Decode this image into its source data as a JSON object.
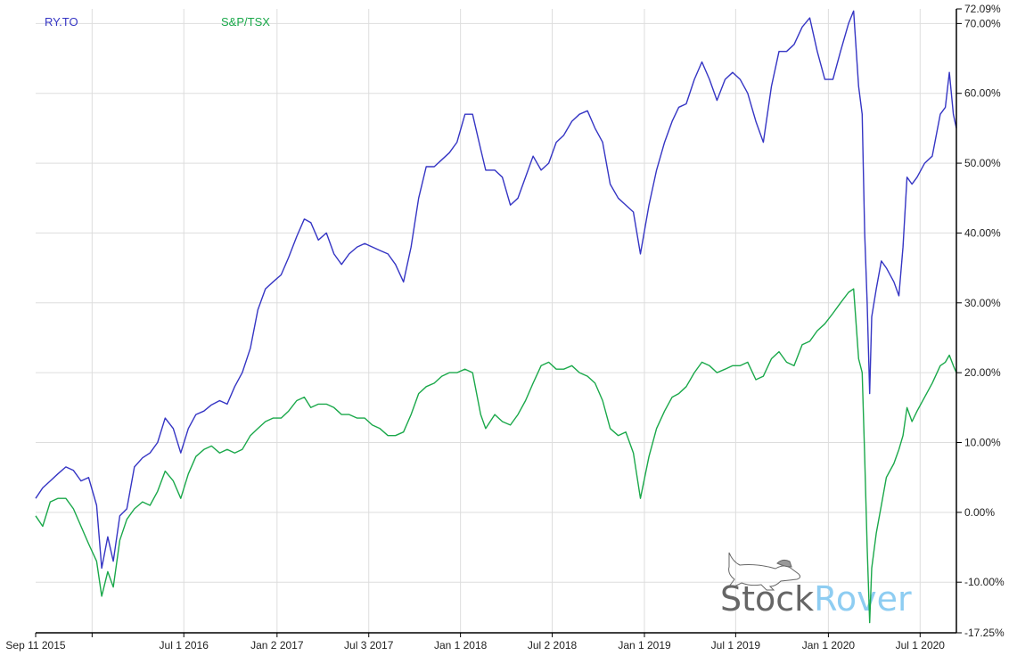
{
  "chart_data": {
    "type": "line",
    "title": "",
    "xlabel": "",
    "ylabel": "",
    "x_range": [
      "2015-09-11",
      "2020-09-11"
    ],
    "ylim": [
      -17.25,
      72.09
    ],
    "y_unit": "%",
    "grid": true,
    "legend_placement": "top-left",
    "x_ticks": [
      {
        "date": "2015-09-11",
        "label": "Sep 11 2015"
      },
      {
        "date": "2016-01-01",
        "label": ""
      },
      {
        "date": "2016-07-01",
        "label": "Jul 1 2016"
      },
      {
        "date": "2017-01-02",
        "label": "Jan 2 2017"
      },
      {
        "date": "2017-07-03",
        "label": "Jul 3 2017"
      },
      {
        "date": "2018-01-01",
        "label": "Jan 1 2018"
      },
      {
        "date": "2018-07-02",
        "label": "Jul 2 2018"
      },
      {
        "date": "2019-01-01",
        "label": "Jan 1 2019"
      },
      {
        "date": "2019-07-01",
        "label": "Jul 1 2019"
      },
      {
        "date": "2020-01-01",
        "label": "Jan 1 2020"
      },
      {
        "date": "2020-07-01",
        "label": "Jul 1 2020"
      }
    ],
    "y_ticks": [
      {
        "value": 72.09,
        "label": "72.09%"
      },
      {
        "value": 70,
        "label": "70.00%"
      },
      {
        "value": 60,
        "label": "60.00%"
      },
      {
        "value": 50,
        "label": "50.00%"
      },
      {
        "value": 40,
        "label": "40.00%"
      },
      {
        "value": 30,
        "label": "30.00%"
      },
      {
        "value": 20,
        "label": "20.00%"
      },
      {
        "value": 10,
        "label": "10.00%"
      },
      {
        "value": 0,
        "label": "0.00%"
      },
      {
        "value": -10,
        "label": "-10.00%"
      },
      {
        "value": -17.25,
        "label": "-17.25%"
      }
    ],
    "x": [
      "2015-09-11",
      "2015-09-25",
      "2015-10-10",
      "2015-10-25",
      "2015-11-10",
      "2015-11-25",
      "2015-12-10",
      "2015-12-25",
      "2016-01-10",
      "2016-01-20",
      "2016-02-01",
      "2016-02-12",
      "2016-02-25",
      "2016-03-10",
      "2016-03-25",
      "2016-04-10",
      "2016-04-25",
      "2016-05-10",
      "2016-05-25",
      "2016-06-10",
      "2016-06-25",
      "2016-07-10",
      "2016-07-25",
      "2016-08-10",
      "2016-08-25",
      "2016-09-10",
      "2016-09-25",
      "2016-10-10",
      "2016-10-25",
      "2016-11-10",
      "2016-11-25",
      "2016-12-10",
      "2016-12-25",
      "2017-01-10",
      "2017-01-25",
      "2017-02-10",
      "2017-02-25",
      "2017-03-10",
      "2017-03-25",
      "2017-04-10",
      "2017-04-25",
      "2017-05-10",
      "2017-05-25",
      "2017-06-10",
      "2017-06-25",
      "2017-07-10",
      "2017-07-25",
      "2017-08-10",
      "2017-08-25",
      "2017-09-10",
      "2017-09-25",
      "2017-10-10",
      "2017-10-25",
      "2017-11-10",
      "2017-11-25",
      "2017-12-10",
      "2017-12-25",
      "2018-01-10",
      "2018-01-25",
      "2018-02-10",
      "2018-02-20",
      "2018-03-10",
      "2018-03-25",
      "2018-04-10",
      "2018-04-25",
      "2018-05-10",
      "2018-05-25",
      "2018-06-10",
      "2018-06-25",
      "2018-07-10",
      "2018-07-25",
      "2018-08-10",
      "2018-08-25",
      "2018-09-10",
      "2018-09-25",
      "2018-10-10",
      "2018-10-25",
      "2018-11-10",
      "2018-11-25",
      "2018-12-10",
      "2018-12-24",
      "2019-01-10",
      "2019-01-25",
      "2019-02-10",
      "2019-02-25",
      "2019-03-10",
      "2019-03-25",
      "2019-04-10",
      "2019-04-25",
      "2019-05-10",
      "2019-05-25",
      "2019-06-10",
      "2019-06-25",
      "2019-07-10",
      "2019-07-25",
      "2019-08-10",
      "2019-08-25",
      "2019-09-10",
      "2019-09-25",
      "2019-10-10",
      "2019-10-25",
      "2019-11-10",
      "2019-11-25",
      "2019-12-10",
      "2019-12-25",
      "2020-01-10",
      "2020-01-25",
      "2020-02-10",
      "2020-02-20",
      "2020-03-01",
      "2020-03-08",
      "2020-03-13",
      "2020-03-18",
      "2020-03-23",
      "2020-03-27",
      "2020-04-05",
      "2020-04-15",
      "2020-04-25",
      "2020-05-10",
      "2020-05-20",
      "2020-05-28",
      "2020-06-05",
      "2020-06-15",
      "2020-06-25",
      "2020-07-10",
      "2020-07-25",
      "2020-08-10",
      "2020-08-20",
      "2020-08-28",
      "2020-09-05",
      "2020-09-11"
    ],
    "series": [
      {
        "name": "RY.TO",
        "color": "#3535c4",
        "values": [
          2,
          3.5,
          4.5,
          5.5,
          6.5,
          6,
          4.5,
          5,
          1,
          -8,
          -3.5,
          -7,
          -0.5,
          0.5,
          6.5,
          7.8,
          8.5,
          10,
          13.5,
          12,
          8.5,
          12,
          14,
          14.5,
          15.4,
          16,
          15.5,
          18,
          20,
          23.5,
          29,
          32,
          33,
          34,
          36.5,
          39.5,
          42,
          41.5,
          39,
          40,
          37,
          35.5,
          37,
          38,
          38.5,
          38,
          37.5,
          37,
          35.5,
          33,
          38,
          45,
          49.5,
          49.5,
          50.5,
          51.5,
          53,
          57,
          57,
          52,
          49,
          49,
          48,
          44,
          45,
          48,
          51,
          49,
          50,
          53,
          54,
          56,
          57,
          57.5,
          55,
          53,
          47,
          45,
          44,
          43,
          37,
          44,
          49,
          53,
          56,
          58,
          58.5,
          62,
          64.5,
          62,
          59,
          62,
          63,
          62,
          60,
          56,
          53,
          61,
          66,
          66,
          67,
          69.5,
          70.8,
          66,
          62,
          62,
          66,
          70,
          71.8,
          61,
          57,
          40,
          30,
          17,
          28,
          32,
          36,
          35,
          33,
          31,
          38,
          48,
          47,
          48,
          50,
          51,
          57,
          58,
          63,
          57,
          55
        ]
      },
      {
        "name": "S&P/TSX",
        "color": "#1aa84a",
        "values": [
          -0.5,
          -2,
          1.5,
          2,
          2,
          0.5,
          -2,
          -4.5,
          -7,
          -12,
          -8.5,
          -10.7,
          -4,
          -1,
          0.5,
          1.5,
          1,
          3,
          5.9,
          4.5,
          2,
          5.5,
          8,
          9,
          9.5,
          8.5,
          9,
          8.5,
          9,
          11,
          12,
          13,
          13.5,
          13.5,
          14.5,
          16,
          16.5,
          15,
          15.5,
          15.5,
          15,
          14,
          14,
          13.5,
          13.5,
          12.5,
          12,
          11,
          11,
          11.5,
          14,
          17,
          18,
          18.5,
          19.5,
          20,
          20,
          20.5,
          20,
          14,
          12,
          14,
          13,
          12.5,
          14,
          16,
          18.5,
          21,
          21.5,
          20.5,
          20.5,
          21,
          20,
          19.5,
          18.5,
          16,
          12,
          11,
          11.5,
          8.5,
          2,
          8,
          12,
          14.5,
          16.5,
          17,
          18,
          20,
          21.5,
          21,
          20,
          20.5,
          21,
          21,
          21.5,
          19,
          19.5,
          22,
          23,
          21.5,
          21,
          24,
          24.5,
          26,
          27,
          28.5,
          30,
          31.5,
          32,
          22,
          20,
          8,
          -5,
          -15.8,
          -8,
          -3,
          1,
          5,
          7,
          9,
          11,
          15,
          13,
          14.5,
          16.5,
          18.5,
          21,
          21.5,
          22.5,
          21,
          20
        ]
      }
    ]
  },
  "legend": {
    "items": [
      "RY.TO",
      "S&P/TSX"
    ]
  },
  "watermark": {
    "part1": "Stock",
    "part2": "Rover",
    "color1": "#666666",
    "color2": "#8ecdf2"
  },
  "colors": {
    "grid": "#dddddd",
    "axis": "#000000"
  }
}
